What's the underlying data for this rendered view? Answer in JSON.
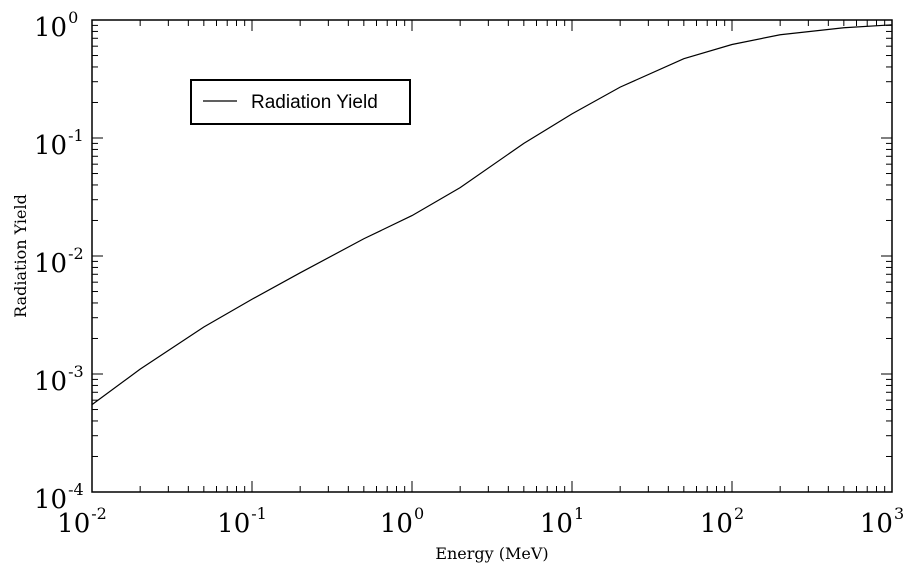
{
  "chart_data": {
    "type": "line",
    "xlabel": "Energy (MeV)",
    "ylabel": "Radiation Yield",
    "x_scale": "log",
    "y_scale": "log",
    "xlim": [
      0.01,
      1000
    ],
    "ylim": [
      0.0001,
      1
    ],
    "x_ticks": [
      {
        "base": "10",
        "exp": "-2",
        "value": 0.01
      },
      {
        "base": "10",
        "exp": "-1",
        "value": 0.1
      },
      {
        "base": "10",
        "exp": "0",
        "value": 1
      },
      {
        "base": "10",
        "exp": "1",
        "value": 10
      },
      {
        "base": "10",
        "exp": "2",
        "value": 100
      },
      {
        "base": "10",
        "exp": "3",
        "value": 1000
      }
    ],
    "y_ticks": [
      {
        "base": "10",
        "exp": "-4",
        "value": 0.0001
      },
      {
        "base": "10",
        "exp": "-3",
        "value": 0.001
      },
      {
        "base": "10",
        "exp": "-2",
        "value": 0.01
      },
      {
        "base": "10",
        "exp": "-1",
        "value": 0.1
      },
      {
        "base": "10",
        "exp": "0",
        "value": 1
      }
    ],
    "grid": false,
    "legend_position": "top-left",
    "series": [
      {
        "name": "Radiation Yield",
        "color": "#000000",
        "x": [
          0.01,
          0.02,
          0.05,
          0.1,
          0.2,
          0.5,
          1,
          2,
          5,
          10,
          20,
          50,
          100,
          200,
          500,
          1000
        ],
        "y": [
          0.00055,
          0.0011,
          0.0025,
          0.0043,
          0.0072,
          0.014,
          0.022,
          0.038,
          0.09,
          0.16,
          0.27,
          0.47,
          0.62,
          0.75,
          0.86,
          0.91
        ]
      }
    ]
  }
}
